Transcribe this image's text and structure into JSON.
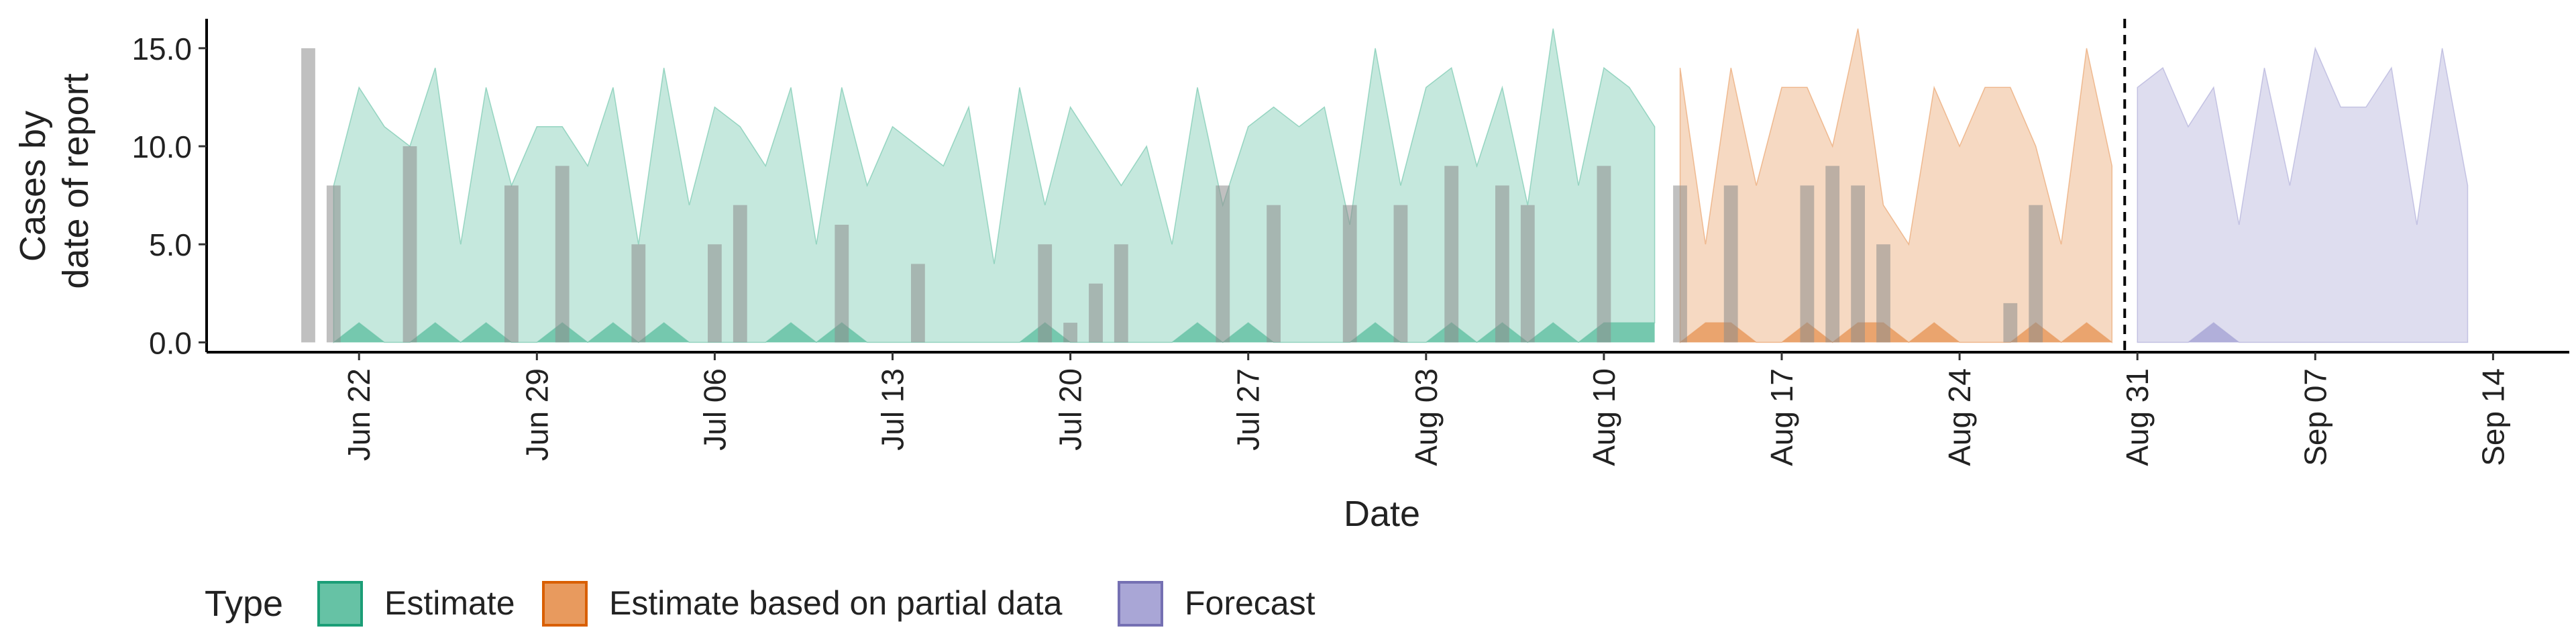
{
  "chart_data": {
    "type": "area",
    "xlabel": "Date",
    "ylabel_lines": [
      "Cases by",
      "date of report"
    ],
    "ylim": [
      -0.5,
      16.5
    ],
    "y_ticks": [
      0,
      5,
      10,
      15
    ],
    "y_tick_labels": [
      "0.0",
      "5.0",
      "10.0",
      "15.0"
    ],
    "xlim": [
      "2020-06-16",
      "2020-09-17"
    ],
    "x_ticks": [
      "2020-06-22",
      "2020-06-29",
      "2020-07-06",
      "2020-07-13",
      "2020-07-20",
      "2020-07-27",
      "2020-08-03",
      "2020-08-10",
      "2020-08-17",
      "2020-08-24",
      "2020-08-31",
      "2020-09-07",
      "2020-09-14"
    ],
    "x_tick_labels": [
      "Jun 22",
      "Jun 29",
      "Jul 06",
      "Jul 13",
      "Jul 20",
      "Jul 27",
      "Aug 03",
      "Aug 10",
      "Aug 17",
      "Aug 24",
      "Aug 31",
      "Sep 07",
      "Sep 14"
    ],
    "forecast_date": "2020-08-30",
    "legend": {
      "title": "Type",
      "position": "bottom",
      "entries": [
        {
          "label": "Estimate",
          "fill": "#66C2A5",
          "stroke": "#1B9E77"
        },
        {
          "label": "Estimate based on partial data",
          "fill": "#E89A5E",
          "stroke": "#D95F02"
        },
        {
          "label": "Forecast",
          "fill": "#A9A6D6",
          "stroke": "#7570B3"
        }
      ]
    },
    "series": [
      {
        "name": "Estimate",
        "color": "#66C2A5",
        "x": [
          "2020-06-21",
          "2020-06-22",
          "2020-06-23",
          "2020-06-24",
          "2020-06-25",
          "2020-06-26",
          "2020-06-27",
          "2020-06-28",
          "2020-06-29",
          "2020-06-30",
          "2020-07-01",
          "2020-07-02",
          "2020-07-03",
          "2020-07-04",
          "2020-07-05",
          "2020-07-06",
          "2020-07-07",
          "2020-07-08",
          "2020-07-09",
          "2020-07-10",
          "2020-07-11",
          "2020-07-12",
          "2020-07-13",
          "2020-07-14",
          "2020-07-15",
          "2020-07-16",
          "2020-07-17",
          "2020-07-18",
          "2020-07-19",
          "2020-07-20",
          "2020-07-21",
          "2020-07-22",
          "2020-07-23",
          "2020-07-24",
          "2020-07-25",
          "2020-07-26",
          "2020-07-27",
          "2020-07-28",
          "2020-07-29",
          "2020-07-30",
          "2020-07-31",
          "2020-08-01",
          "2020-08-02",
          "2020-08-03",
          "2020-08-04",
          "2020-08-05",
          "2020-08-06",
          "2020-08-07",
          "2020-08-08",
          "2020-08-09",
          "2020-08-10",
          "2020-08-11",
          "2020-08-12"
        ],
        "upper": [
          8,
          13,
          11,
          10,
          14,
          5,
          13,
          8,
          11,
          11,
          9,
          13,
          5,
          14,
          7,
          12,
          11,
          9,
          13,
          5,
          13,
          8,
          11,
          10,
          9,
          12,
          4,
          13,
          7,
          12,
          10,
          8,
          10,
          5,
          13,
          7,
          11,
          12,
          11,
          12,
          6,
          15,
          8,
          13,
          14,
          9,
          13,
          7,
          16,
          8,
          14,
          13,
          11
        ],
        "lower": [
          0,
          1,
          0,
          0,
          1,
          0,
          1,
          0,
          0,
          1,
          0,
          1,
          0,
          1,
          0,
          0,
          0,
          0,
          1,
          0,
          1,
          0,
          0,
          0,
          0,
          0,
          0,
          0,
          1,
          0,
          0,
          0,
          0,
          0,
          1,
          0,
          1,
          0,
          0,
          0,
          0,
          1,
          0,
          0,
          1,
          0,
          1,
          0,
          1,
          0,
          1,
          1,
          1
        ]
      },
      {
        "name": "Estimate based on partial data",
        "color": "#E89A5E",
        "x": [
          "2020-08-13",
          "2020-08-14",
          "2020-08-15",
          "2020-08-16",
          "2020-08-17",
          "2020-08-18",
          "2020-08-19",
          "2020-08-20",
          "2020-08-21",
          "2020-08-22",
          "2020-08-23",
          "2020-08-24",
          "2020-08-25",
          "2020-08-26",
          "2020-08-27",
          "2020-08-28",
          "2020-08-29",
          "2020-08-30"
        ],
        "upper": [
          14,
          5,
          14,
          8,
          13,
          13,
          10,
          16,
          7,
          5,
          13,
          10,
          13,
          13,
          10,
          5,
          15,
          9
        ],
        "lower": [
          0,
          1,
          1,
          0,
          0,
          1,
          0,
          1,
          1,
          0,
          1,
          0,
          0,
          0,
          1,
          0,
          1,
          0
        ]
      },
      {
        "name": "Forecast",
        "color": "#A9A6D6",
        "x": [
          "2020-08-31",
          "2020-09-01",
          "2020-09-02",
          "2020-09-03",
          "2020-09-04",
          "2020-09-05",
          "2020-09-06",
          "2020-09-07",
          "2020-09-08",
          "2020-09-09",
          "2020-09-10",
          "2020-09-11",
          "2020-09-12",
          "2020-09-13"
        ],
        "upper": [
          13,
          14,
          11,
          13,
          6,
          14,
          8,
          15,
          12,
          12,
          14,
          6,
          15,
          8
        ],
        "lower": [
          0,
          0,
          0,
          1,
          0,
          0,
          0,
          0,
          0,
          0,
          0,
          0,
          0,
          0
        ]
      }
    ],
    "reported_cases": {
      "color": "#8C8C8C",
      "x": [
        "2020-06-20",
        "2020-06-21",
        "2020-06-24",
        "2020-06-28",
        "2020-06-30",
        "2020-07-03",
        "2020-07-06",
        "2020-07-07",
        "2020-07-11",
        "2020-07-14",
        "2020-07-19",
        "2020-07-20",
        "2020-07-21",
        "2020-07-22",
        "2020-07-26",
        "2020-07-28",
        "2020-07-31",
        "2020-08-02",
        "2020-08-04",
        "2020-08-06",
        "2020-08-07",
        "2020-08-10",
        "2020-08-13",
        "2020-08-15",
        "2020-08-18",
        "2020-08-19",
        "2020-08-20",
        "2020-08-21",
        "2020-08-26",
        "2020-08-27"
      ],
      "values": [
        15,
        8,
        10,
        8,
        9,
        5,
        5,
        7,
        6,
        4,
        5,
        1,
        3,
        5,
        8,
        7,
        7,
        7,
        9,
        8,
        7,
        9,
        8,
        8,
        8,
        9,
        8,
        5,
        2,
        7
      ]
    }
  }
}
